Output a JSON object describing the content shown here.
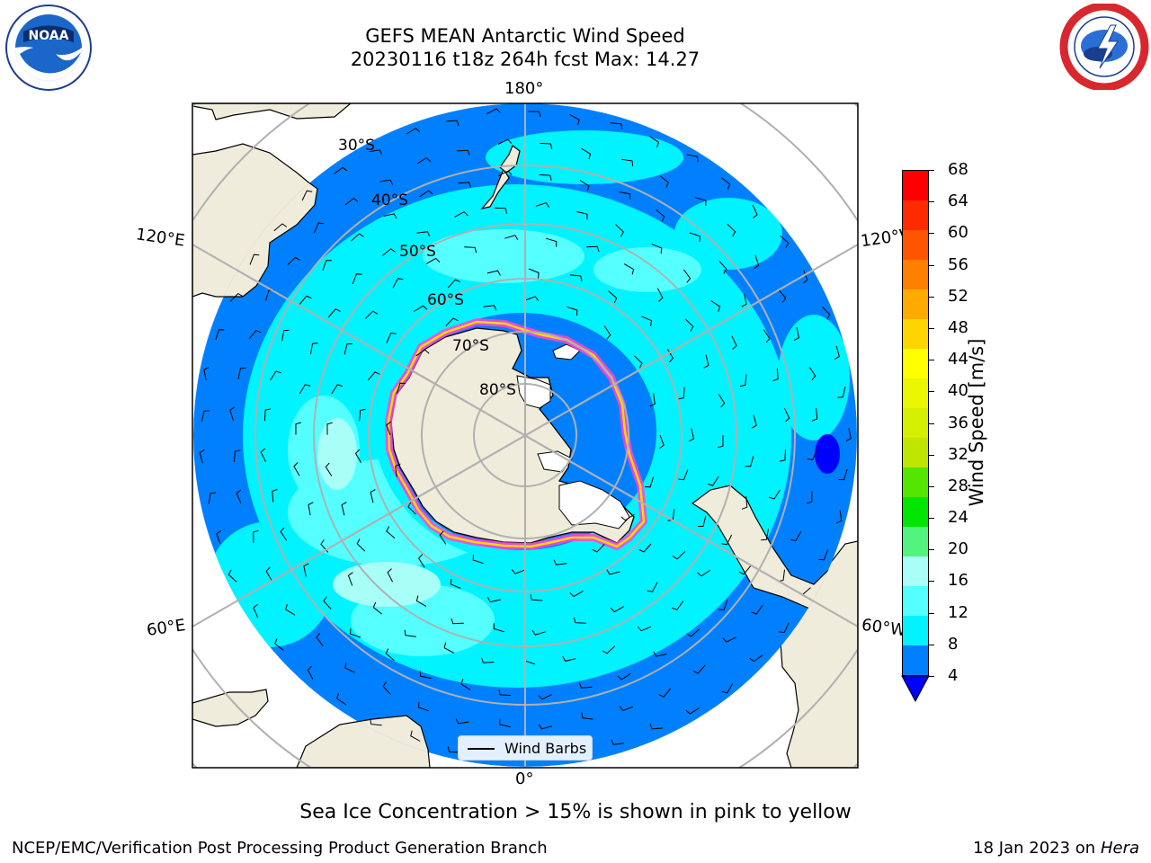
{
  "header": {
    "title_line1": "GEFS MEAN Antarctic Wind Speed",
    "title_line2": "20230116 t18z 264h fcst   Max: 14.27"
  },
  "logos": {
    "left": "noaa-logo",
    "left_text": "NOAA",
    "right": "nws-logo"
  },
  "map": {
    "projection": "south polar stereographic",
    "longitude_labels": {
      "top": "180°",
      "bottom": "0°",
      "upper_left": "120°E",
      "lower_left": "60°E",
      "upper_right": "120°W",
      "lower_right": "60°W"
    },
    "latitude_labels": [
      "30°S",
      "40°S",
      "50°S",
      "60°S",
      "70°S",
      "80°S"
    ],
    "land_color": "#efecdc",
    "ice_shelf_color": "#ffffff"
  },
  "legend": {
    "entry": "Wind Barbs"
  },
  "colorbar": {
    "label": "Wind Speed [m/s]",
    "ticks": [
      "68",
      "64",
      "60",
      "56",
      "52",
      "48",
      "44",
      "40",
      "36",
      "32",
      "28",
      "24",
      "20",
      "16",
      "12",
      "8",
      "4"
    ],
    "colors_top_to_bottom": [
      "#ff0000",
      "#ff2a00",
      "#ff5500",
      "#ff8000",
      "#ffaa00",
      "#ffd500",
      "#ffff00",
      "#eaf700",
      "#d4ef00",
      "#bfe600",
      "#55e600",
      "#00e600",
      "#52f37f",
      "#a8fff8",
      "#55ffff",
      "#00f3ff",
      "#0080ff"
    ],
    "under_color": "#0000ff"
  },
  "caption": "Sea Ice Concentration > 15% is shown in pink to yellow",
  "footer": {
    "credit": "NCEP/EMC/Verification Post Processing Product Generation Branch",
    "date_prefix": "18 Jan 2023 on ",
    "machine": "Hera"
  }
}
